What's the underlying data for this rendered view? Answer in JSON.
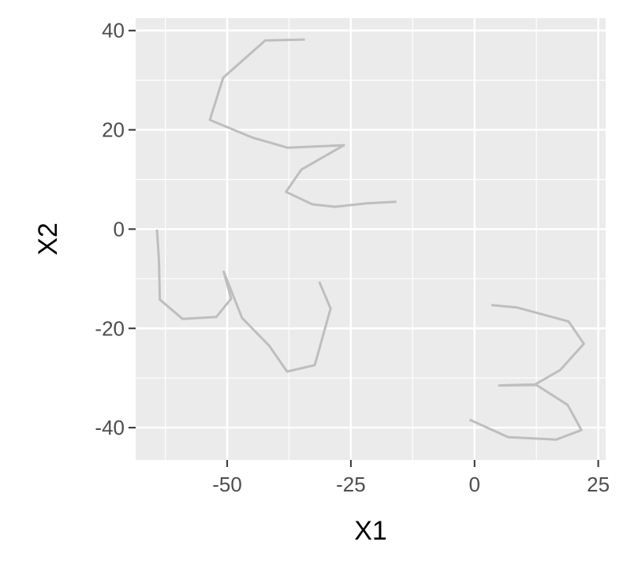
{
  "chart_data": {
    "type": "line",
    "title": "",
    "xlabel": "X1",
    "ylabel": "X2",
    "xlim": [
      -68.5,
      26.5
    ],
    "ylim": [
      -46.5,
      42.5
    ],
    "x_ticks": [
      -50,
      -25,
      0,
      25
    ],
    "x_tick_labels": [
      "-50",
      "-25",
      "0",
      "25"
    ],
    "y_ticks": [
      -40,
      -20,
      0,
      20,
      40
    ],
    "y_tick_labels": [
      "-40",
      "-20",
      "0",
      "20",
      "40"
    ],
    "grid": true,
    "legend": "none",
    "line_color": "#bebebe",
    "panel_background": "#ebebeb",
    "grid_color": "#ffffff",
    "series": [
      {
        "x": [
          -34.3,
          -42.3,
          -50.8,
          -53.5,
          -44.8,
          -37.8,
          -26.4,
          -35.0,
          -38.1,
          -32.8,
          -28.2,
          -21.8,
          -15.8
        ],
        "y": [
          38.2,
          38.0,
          30.5,
          22.0,
          18.4,
          16.4,
          16.9,
          12.0,
          7.5,
          5.0,
          4.5,
          5.2,
          5.5
        ]
      },
      {
        "x": [
          -64.2,
          -63.8,
          -63.6,
          -59.0,
          -52.2,
          -49.2,
          -50.7,
          -47.0,
          -41.5,
          -37.9,
          -32.3,
          -29.1,
          -31.4
        ],
        "y": [
          -0.1,
          -6.0,
          -14.2,
          -18.1,
          -17.7,
          -14.0,
          -8.6,
          -17.9,
          -23.5,
          -28.7,
          -27.4,
          -16.0,
          -10.6
        ]
      },
      {
        "x": [
          3.4,
          8.6,
          19.0,
          22.1,
          17.3,
          12.2,
          5.0,
          12.5,
          18.8,
          21.6,
          16.5,
          6.8,
          -1.0
        ],
        "y": [
          -15.3,
          -15.8,
          -18.6,
          -23.1,
          -28.4,
          -31.3,
          -31.5,
          -31.4,
          -35.4,
          -40.5,
          -42.4,
          -41.9,
          -38.4
        ]
      }
    ]
  }
}
